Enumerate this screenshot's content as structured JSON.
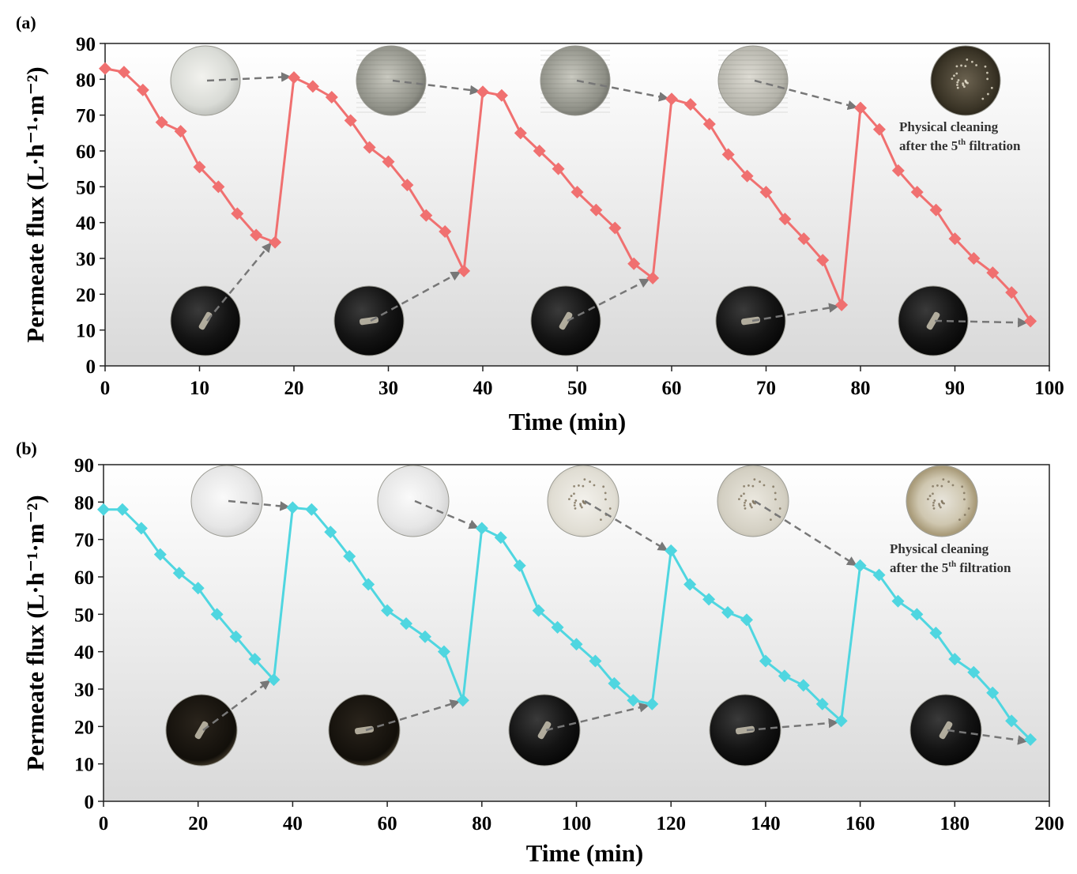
{
  "chart_data": [
    {
      "type": "line",
      "panel_label": "(a)",
      "xlabel": "Time (min)",
      "ylabel": "Permeate flux (L·h⁻¹·m⁻²)",
      "xlim": [
        0,
        100
      ],
      "ylim": [
        0,
        90
      ],
      "xticks": [
        0,
        10,
        20,
        30,
        40,
        50,
        60,
        70,
        80,
        90,
        100
      ],
      "yticks": [
        0,
        10,
        20,
        30,
        40,
        50,
        60,
        70,
        80,
        90
      ],
      "color": "#f07070",
      "marker": "diamond",
      "grid": false,
      "background": "vertical gradient white to light gray",
      "annotation": {
        "line1": "Physical cleaning",
        "line2_prefix": "after the 5",
        "line2_sup": "th",
        "line2_suffix": " filtration"
      },
      "series": [
        {
          "x": [
            0,
            2,
            4,
            6,
            8,
            10,
            12,
            14,
            16,
            18,
            20,
            22,
            24,
            26,
            28,
            30,
            32,
            34,
            36,
            38,
            40,
            42,
            44,
            46,
            48,
            50,
            52,
            54,
            56,
            58,
            60,
            62,
            64,
            66,
            68,
            70,
            72,
            74,
            76,
            78,
            80,
            82,
            84,
            86,
            88,
            90,
            92,
            94,
            96,
            98
          ],
          "y": [
            83,
            82,
            77,
            68,
            65.5,
            55.5,
            50,
            42.5,
            36.5,
            34.5,
            80.5,
            78,
            75,
            68.5,
            61,
            57,
            50.5,
            42,
            37.5,
            26.5,
            76.5,
            75.5,
            65,
            60,
            55,
            48.5,
            43.5,
            38.5,
            28.5,
            24.5,
            74.5,
            73,
            67.5,
            59,
            53,
            48.5,
            41,
            35.5,
            29.5,
            17,
            72,
            66,
            54.5,
            48.5,
            43.5,
            35.5,
            30,
            26,
            20.5,
            12.5
          ]
        }
      ],
      "membrane_photos": {
        "clean": [
          {
            "tone": "light",
            "arrow_to": [
              20,
              80.5
            ]
          },
          {
            "tone": "mesh-gray",
            "arrow_to": [
              40,
              76.5
            ]
          },
          {
            "tone": "mesh-gray",
            "arrow_to": [
              60,
              74.5
            ]
          },
          {
            "tone": "mesh-light",
            "arrow_to": [
              80,
              72
            ]
          },
          {
            "tone": "dark-speckled",
            "arrow_to": null
          }
        ],
        "fouled": [
          {
            "tone": "black",
            "arrow_to": [
              18,
              34.5
            ]
          },
          {
            "tone": "black",
            "arrow_to": [
              38,
              26.5
            ]
          },
          {
            "tone": "black",
            "arrow_to": [
              58,
              24.5
            ]
          },
          {
            "tone": "black",
            "arrow_to": [
              78,
              17
            ]
          },
          {
            "tone": "black",
            "arrow_to": [
              98,
              12.5
            ]
          }
        ]
      }
    },
    {
      "type": "line",
      "panel_label": "(b)",
      "xlabel": "Time (min)",
      "ylabel": "Permeate flux (L·h⁻¹·m⁻²)",
      "xlim": [
        0,
        200
      ],
      "ylim": [
        0,
        90
      ],
      "xticks": [
        0,
        20,
        40,
        60,
        80,
        100,
        120,
        140,
        160,
        180,
        200
      ],
      "yticks": [
        0,
        10,
        20,
        30,
        40,
        50,
        60,
        70,
        80,
        90
      ],
      "color": "#4fd6e0",
      "marker": "diamond",
      "grid": false,
      "background": "vertical gradient white to light gray",
      "annotation": {
        "line1": "Physical cleaning",
        "line2_prefix": "after the 5",
        "line2_sup": "th",
        "line2_suffix": " filtration"
      },
      "series": [
        {
          "x": [
            0,
            4,
            8,
            12,
            16,
            20,
            24,
            28,
            32,
            36,
            40,
            44,
            48,
            52,
            56,
            60,
            64,
            68,
            72,
            76,
            80,
            84,
            88,
            92,
            96,
            100,
            104,
            108,
            112,
            116,
            120,
            124,
            128,
            132,
            136,
            140,
            144,
            148,
            152,
            156,
            160,
            164,
            168,
            172,
            176,
            180,
            184,
            188,
            192,
            196
          ],
          "y": [
            78,
            78,
            73,
            66,
            61,
            57,
            50,
            44,
            38,
            32.5,
            78.5,
            78,
            72,
            65.5,
            58,
            51,
            47.5,
            44,
            40,
            27,
            73,
            70.5,
            63,
            51,
            46.5,
            42,
            37.5,
            31.5,
            27,
            26,
            67,
            58,
            54,
            50.5,
            48.5,
            37.5,
            33.5,
            31,
            26,
            21.5,
            63,
            60.5,
            53.5,
            50,
            45,
            38,
            34.5,
            29,
            21.5,
            16.5
          ]
        }
      ],
      "membrane_photos": {
        "clean": [
          {
            "tone": "translucent",
            "arrow_to": [
              40,
              78.5
            ]
          },
          {
            "tone": "translucent",
            "arrow_to": [
              80,
              73
            ]
          },
          {
            "tone": "speckled-light",
            "arrow_to": [
              120,
              67
            ]
          },
          {
            "tone": "speckled",
            "arrow_to": [
              160,
              63
            ]
          },
          {
            "tone": "speckled-ring",
            "arrow_to": null
          }
        ],
        "fouled": [
          {
            "tone": "black-brown",
            "arrow_to": [
              36,
              32.5
            ]
          },
          {
            "tone": "black-brown",
            "arrow_to": [
              76,
              27
            ]
          },
          {
            "tone": "black",
            "arrow_to": [
              116,
              26
            ]
          },
          {
            "tone": "black",
            "arrow_to": [
              156,
              21.5
            ]
          },
          {
            "tone": "black",
            "arrow_to": [
              196,
              16.5
            ]
          }
        ]
      }
    }
  ]
}
